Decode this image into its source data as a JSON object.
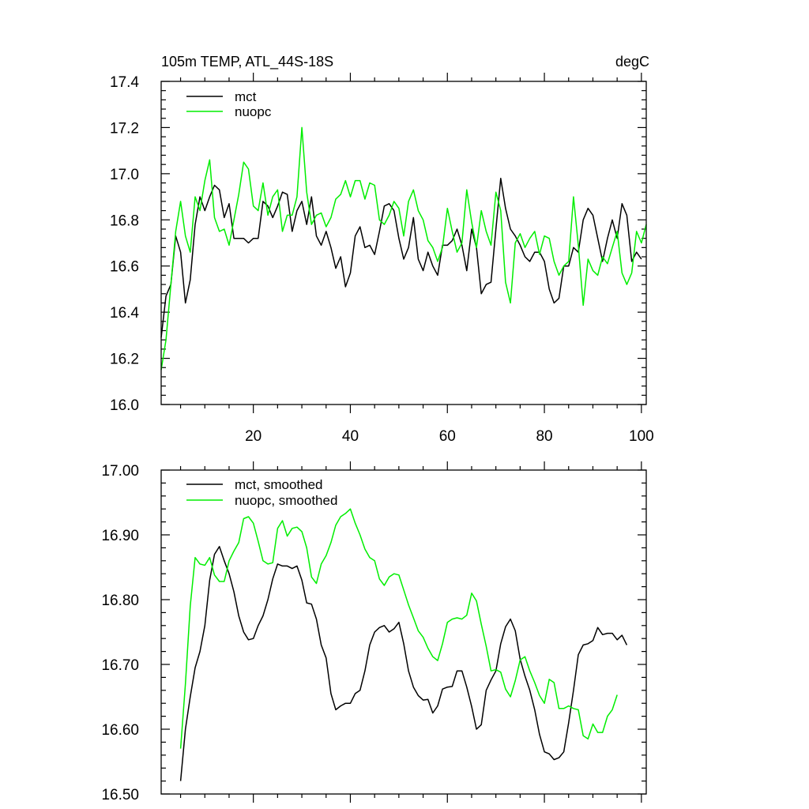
{
  "colors": {
    "mct": "#000000",
    "nuopc": "#00ee00"
  },
  "chart_data": [
    {
      "type": "line",
      "title": "105m TEMP, ATL_44S-18S",
      "units": "degC",
      "xlim": [
        1,
        101
      ],
      "ylim": [
        16.0,
        17.4
      ],
      "xticks": [
        20,
        40,
        60,
        80,
        100
      ],
      "xtick_labels": [
        "20",
        "40",
        "60",
        "80",
        "100"
      ],
      "yticks": [
        16.0,
        16.2,
        16.4,
        16.6,
        16.8,
        17.0,
        17.2,
        17.4
      ],
      "ytick_labels": [
        "16.0",
        "16.2",
        "16.4",
        "16.6",
        "16.8",
        "17.0",
        "17.2",
        "17.4"
      ],
      "legend_position": "top-left",
      "x_start": 1,
      "series": [
        {
          "name": "mct",
          "color_key": "mct",
          "values": [
            16.29,
            16.47,
            16.52,
            16.73,
            16.66,
            16.44,
            16.54,
            16.78,
            16.9,
            16.84,
            16.9,
            16.95,
            16.93,
            16.81,
            16.87,
            16.72,
            16.72,
            16.72,
            16.7,
            16.72,
            16.72,
            16.88,
            16.86,
            16.81,
            16.86,
            16.92,
            16.91,
            16.75,
            16.84,
            16.88,
            16.78,
            16.9,
            16.73,
            16.69,
            16.75,
            16.68,
            16.59,
            16.64,
            16.51,
            16.57,
            16.73,
            16.77,
            16.68,
            16.69,
            16.65,
            16.75,
            16.86,
            16.87,
            16.84,
            16.72,
            16.63,
            16.68,
            16.81,
            16.63,
            16.58,
            16.66,
            16.6,
            16.56,
            16.69,
            16.69,
            16.71,
            16.76,
            16.69,
            16.58,
            16.76,
            16.68,
            16.48,
            16.52,
            16.53,
            16.76,
            16.98,
            16.85,
            16.76,
            16.73,
            16.69,
            16.64,
            16.62,
            16.66,
            16.66,
            16.62,
            16.5,
            16.44,
            16.46,
            16.6,
            16.6,
            16.68,
            16.66,
            16.8,
            16.85,
            16.82,
            16.72,
            16.62,
            16.72,
            16.8,
            16.72,
            16.87,
            16.82,
            16.62,
            16.66,
            16.63
          ]
        },
        {
          "name": "nuopc",
          "color_key": "nuopc",
          "values": [
            16.15,
            16.28,
            16.52,
            16.75,
            16.88,
            16.73,
            16.66,
            16.9,
            16.84,
            16.97,
            17.06,
            16.81,
            16.75,
            16.76,
            16.69,
            16.8,
            16.91,
            17.05,
            17.02,
            16.86,
            16.84,
            16.96,
            16.82,
            16.9,
            16.93,
            16.75,
            16.82,
            16.82,
            16.9,
            17.2,
            16.92,
            16.78,
            16.82,
            16.83,
            16.77,
            16.81,
            16.89,
            16.91,
            16.97,
            16.9,
            16.97,
            16.97,
            16.89,
            16.96,
            16.95,
            16.8,
            16.78,
            16.82,
            16.88,
            16.85,
            16.73,
            16.88,
            16.93,
            16.84,
            16.8,
            16.71,
            16.68,
            16.62,
            16.68,
            16.85,
            16.75,
            16.66,
            16.7,
            16.93,
            16.79,
            16.68,
            16.84,
            16.75,
            16.69,
            16.92,
            16.84,
            16.53,
            16.44,
            16.7,
            16.74,
            16.68,
            16.72,
            16.75,
            16.65,
            16.73,
            16.72,
            16.62,
            16.56,
            16.6,
            16.62,
            16.9,
            16.69,
            16.43,
            16.63,
            16.58,
            16.56,
            16.64,
            16.61,
            16.68,
            16.75,
            16.57,
            16.52,
            16.57,
            16.75,
            16.7,
            16.78
          ]
        }
      ]
    },
    {
      "type": "line",
      "title": "",
      "xlim": [
        1,
        101
      ],
      "ylim": [
        16.5,
        17.0
      ],
      "xticks": [
        20,
        40,
        60,
        80,
        100
      ],
      "xtick_labels": [],
      "yticks": [
        16.5,
        16.6,
        16.7,
        16.8,
        16.9,
        17.0
      ],
      "ytick_labels": [
        "16.50",
        "16.60",
        "16.70",
        "16.80",
        "16.90",
        "17.00"
      ],
      "legend_position": "top-left",
      "x_start": 5,
      "series": [
        {
          "name": "mct, smoothed",
          "color_key": "mct",
          "values": [
            16.52,
            16.6,
            16.65,
            16.695,
            16.72,
            16.76,
            16.83,
            16.87,
            16.882,
            16.86,
            16.84,
            16.812,
            16.775,
            16.75,
            16.738,
            16.74,
            16.76,
            16.775,
            16.8,
            16.832,
            16.855,
            16.852,
            16.852,
            16.848,
            16.852,
            16.83,
            16.795,
            16.793,
            16.77,
            16.73,
            16.71,
            16.655,
            16.63,
            16.636,
            16.64,
            16.64,
            16.655,
            16.66,
            16.69,
            16.73,
            16.75,
            16.757,
            16.76,
            16.75,
            16.755,
            16.765,
            16.732,
            16.69,
            16.665,
            16.652,
            16.645,
            16.646,
            16.625,
            16.636,
            16.662,
            16.665,
            16.666,
            16.69,
            16.69,
            16.665,
            16.635,
            16.6,
            16.607,
            16.66,
            16.676,
            16.69,
            16.732,
            16.758,
            16.77,
            16.752,
            16.708,
            16.682,
            16.66,
            16.63,
            16.592,
            16.565,
            16.562,
            16.553,
            16.556,
            16.565,
            16.61,
            16.66,
            16.715,
            16.73,
            16.732,
            16.737,
            16.757,
            16.746,
            16.748,
            16.748,
            16.738,
            16.745,
            16.73
          ]
        },
        {
          "name": "nuopc, smoothed",
          "color_key": "nuopc",
          "values": [
            16.57,
            16.67,
            16.79,
            16.865,
            16.855,
            16.853,
            16.865,
            16.838,
            16.828,
            16.828,
            16.86,
            16.875,
            16.888,
            16.925,
            16.928,
            16.918,
            16.89,
            16.86,
            16.855,
            16.857,
            16.91,
            16.922,
            16.898,
            16.91,
            16.912,
            16.905,
            16.88,
            16.835,
            16.825,
            16.855,
            16.868,
            16.888,
            16.915,
            16.928,
            16.933,
            16.94,
            16.918,
            16.9,
            16.878,
            16.865,
            16.86,
            16.832,
            16.822,
            16.835,
            16.84,
            16.838,
            16.815,
            16.792,
            16.772,
            16.752,
            16.742,
            16.725,
            16.712,
            16.706,
            16.732,
            16.765,
            16.77,
            16.772,
            16.77,
            16.776,
            16.81,
            16.798,
            16.762,
            16.728,
            16.69,
            16.692,
            16.688,
            16.662,
            16.65,
            16.675,
            16.707,
            16.712,
            16.69,
            16.672,
            16.652,
            16.64,
            16.677,
            16.672,
            16.632,
            16.632,
            16.636,
            16.632,
            16.63,
            16.59,
            16.585,
            16.608,
            16.595,
            16.595,
            16.62,
            16.63,
            16.653
          ]
        }
      ]
    }
  ]
}
